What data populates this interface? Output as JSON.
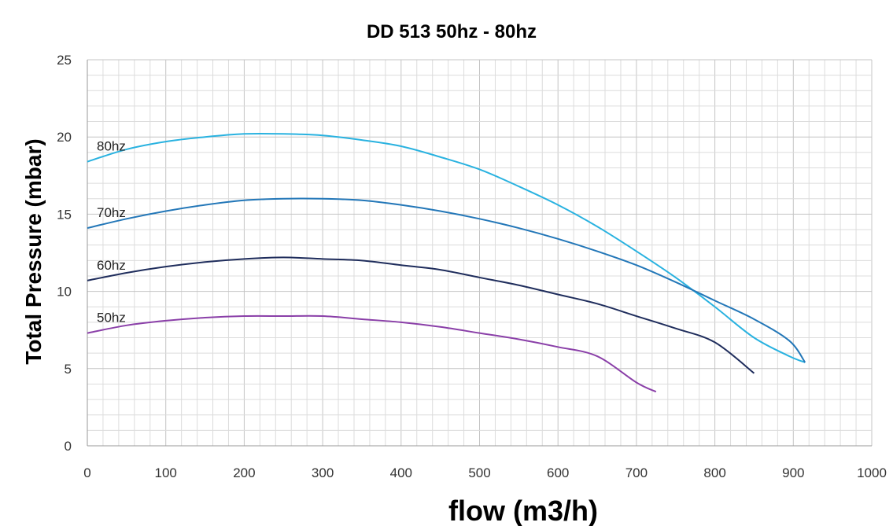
{
  "chart_data": {
    "type": "line",
    "title": "DD 513 50hz - 80hz",
    "xlabel": "flow (m3/h)",
    "ylabel": "Total Pressure (mbar)",
    "xlim": [
      0,
      1000
    ],
    "ylim": [
      0,
      25
    ],
    "xticks": [
      0,
      100,
      200,
      300,
      400,
      500,
      600,
      700,
      800,
      900,
      1000
    ],
    "yticks": [
      0,
      5,
      10,
      15,
      20,
      25
    ],
    "grid": true,
    "legend": "none",
    "series": [
      {
        "name": "80hz",
        "color": "#29b2e0",
        "points": [
          [
            0,
            18.4
          ],
          [
            50,
            19.2
          ],
          [
            100,
            19.7
          ],
          [
            150,
            20.0
          ],
          [
            200,
            20.2
          ],
          [
            250,
            20.2
          ],
          [
            300,
            20.1
          ],
          [
            350,
            19.8
          ],
          [
            400,
            19.4
          ],
          [
            450,
            18.7
          ],
          [
            500,
            17.9
          ],
          [
            550,
            16.8
          ],
          [
            600,
            15.6
          ],
          [
            650,
            14.2
          ],
          [
            700,
            12.6
          ],
          [
            750,
            10.9
          ],
          [
            800,
            9.0
          ],
          [
            850,
            7.0
          ],
          [
            895,
            5.8
          ],
          [
            915,
            5.4
          ]
        ]
      },
      {
        "name": "70hz",
        "color": "#2377b8",
        "points": [
          [
            0,
            14.1
          ],
          [
            50,
            14.7
          ],
          [
            100,
            15.2
          ],
          [
            150,
            15.6
          ],
          [
            200,
            15.9
          ],
          [
            250,
            16.0
          ],
          [
            300,
            16.0
          ],
          [
            350,
            15.9
          ],
          [
            400,
            15.6
          ],
          [
            450,
            15.2
          ],
          [
            500,
            14.7
          ],
          [
            550,
            14.1
          ],
          [
            600,
            13.4
          ],
          [
            650,
            12.6
          ],
          [
            700,
            11.7
          ],
          [
            750,
            10.6
          ],
          [
            800,
            9.4
          ],
          [
            850,
            8.2
          ],
          [
            895,
            6.8
          ],
          [
            915,
            5.4
          ]
        ]
      },
      {
        "name": "60hz",
        "color": "#1f2d5c",
        "points": [
          [
            0,
            10.7
          ],
          [
            50,
            11.2
          ],
          [
            100,
            11.6
          ],
          [
            150,
            11.9
          ],
          [
            200,
            12.1
          ],
          [
            250,
            12.2
          ],
          [
            300,
            12.1
          ],
          [
            350,
            12.0
          ],
          [
            400,
            11.7
          ],
          [
            450,
            11.4
          ],
          [
            500,
            10.9
          ],
          [
            550,
            10.4
          ],
          [
            600,
            9.8
          ],
          [
            650,
            9.2
          ],
          [
            700,
            8.4
          ],
          [
            750,
            7.6
          ],
          [
            800,
            6.7
          ],
          [
            850,
            4.7
          ]
        ]
      },
      {
        "name": "50hz",
        "color": "#8a3fa8",
        "points": [
          [
            0,
            7.3
          ],
          [
            50,
            7.8
          ],
          [
            100,
            8.1
          ],
          [
            150,
            8.3
          ],
          [
            200,
            8.4
          ],
          [
            250,
            8.4
          ],
          [
            300,
            8.4
          ],
          [
            350,
            8.2
          ],
          [
            400,
            8.0
          ],
          [
            450,
            7.7
          ],
          [
            500,
            7.3
          ],
          [
            550,
            6.9
          ],
          [
            600,
            6.4
          ],
          [
            650,
            5.8
          ],
          [
            700,
            4.1
          ],
          [
            725,
            3.5
          ]
        ]
      }
    ]
  }
}
